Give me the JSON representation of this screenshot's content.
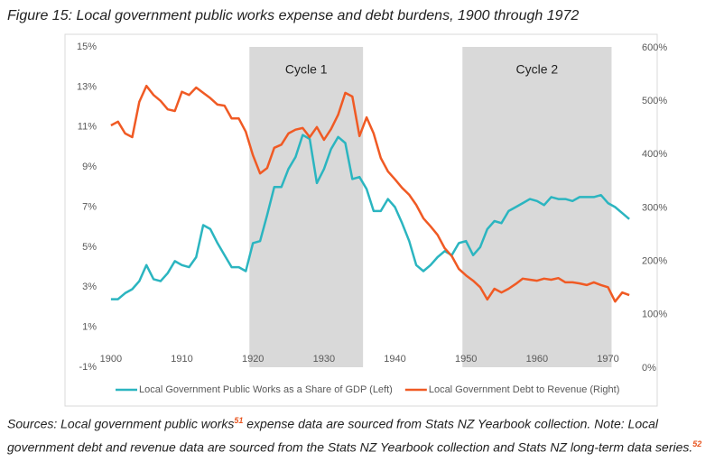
{
  "chart_data": {
    "type": "line",
    "title": "Figure 15: Local government public works expense and debt burdens, 1900 through 1972",
    "x": [
      1900,
      1901,
      1902,
      1903,
      1904,
      1905,
      1906,
      1907,
      1908,
      1909,
      1910,
      1911,
      1912,
      1913,
      1914,
      1915,
      1916,
      1917,
      1918,
      1919,
      1920,
      1921,
      1922,
      1923,
      1924,
      1925,
      1926,
      1927,
      1928,
      1929,
      1930,
      1931,
      1932,
      1933,
      1934,
      1935,
      1936,
      1937,
      1938,
      1939,
      1940,
      1941,
      1942,
      1943,
      1944,
      1945,
      1946,
      1947,
      1948,
      1949,
      1950,
      1951,
      1952,
      1953,
      1954,
      1955,
      1956,
      1957,
      1958,
      1959,
      1960,
      1961,
      1962,
      1963,
      1964,
      1965,
      1966,
      1967,
      1968,
      1969,
      1970,
      1971,
      1972,
      1973
    ],
    "xlim": [
      1899,
      1974
    ],
    "xticks": [
      1900,
      1910,
      1920,
      1930,
      1940,
      1950,
      1960,
      1970
    ],
    "ylim": [
      -1,
      15
    ],
    "yticks": [
      {
        "value": -1,
        "label": "-1%"
      },
      {
        "value": 1,
        "label": "1%"
      },
      {
        "value": 3,
        "label": "3%"
      },
      {
        "value": 5,
        "label": "5%"
      },
      {
        "value": 7,
        "label": "7%"
      },
      {
        "value": 9,
        "label": "9%"
      },
      {
        "value": 11,
        "label": "11%"
      },
      {
        "value": 13,
        "label": "13%"
      },
      {
        "value": 15,
        "label": "15%"
      }
    ],
    "y2lim": [
      0,
      600
    ],
    "y2ticks": [
      {
        "value": 0,
        "label": "0%"
      },
      {
        "value": 100,
        "label": "100%"
      },
      {
        "value": 200,
        "label": "200%"
      },
      {
        "value": 300,
        "label": "300%"
      },
      {
        "value": 400,
        "label": "400%"
      },
      {
        "value": 500,
        "label": "500%"
      },
      {
        "value": 600,
        "label": "600%"
      }
    ],
    "shaded_periods": [
      {
        "label": "Cycle 1",
        "start": 1919.5,
        "end": 1935.5
      },
      {
        "label": "Cycle 2",
        "start": 1949.5,
        "end": 1970.5
      }
    ],
    "shade_color": "#d9d9d9",
    "legend": "bottom",
    "series": [
      {
        "name": "Local Government Public Works as a Share of GDP (Left)",
        "color": "#2bb5c0",
        "axis": "y",
        "values": [
          2.4,
          2.4,
          2.7,
          2.9,
          3.3,
          4.1,
          3.4,
          3.3,
          3.7,
          4.3,
          4.1,
          4.0,
          4.5,
          6.1,
          5.9,
          5.2,
          4.6,
          4.0,
          4.0,
          3.8,
          5.2,
          5.3,
          6.6,
          8.0,
          8.0,
          8.9,
          9.5,
          10.6,
          10.4,
          8.2,
          8.9,
          9.9,
          10.5,
          10.2,
          8.4,
          8.5,
          7.9,
          6.8,
          6.8,
          7.4,
          7.0,
          6.2,
          5.3,
          4.1,
          3.8,
          4.1,
          4.5,
          4.8,
          4.6,
          5.2,
          5.3,
          4.6,
          5.0,
          5.9,
          6.3,
          6.2,
          6.8,
          7.0,
          7.2,
          7.4,
          7.3,
          7.1,
          7.5,
          7.4,
          7.4,
          7.3,
          7.5,
          7.5,
          7.5,
          7.6,
          7.2,
          7.0,
          6.7,
          6.4
        ]
      },
      {
        "name": "Local Government Debt to Revenue (Right)",
        "color": "#f05a24",
        "axis": "y2",
        "values": [
          453,
          460,
          438,
          431,
          497,
          527,
          510,
          499,
          483,
          480,
          516,
          510,
          524,
          514,
          504,
          492,
          490,
          466,
          466,
          441,
          397,
          363,
          373,
          411,
          417,
          438,
          445,
          448,
          431,
          450,
          426,
          446,
          473,
          514,
          507,
          433,
          468,
          438,
          392,
          367,
          352,
          336,
          323,
          304,
          279,
          264,
          248,
          223,
          208,
          184,
          172,
          162,
          150,
          127,
          147,
          140,
          147,
          156,
          166,
          164,
          162,
          166,
          164,
          167,
          159,
          159,
          157,
          154,
          159,
          154,
          150,
          123,
          140,
          135
        ]
      }
    ]
  },
  "source": {
    "text1": "Sources: Local government public works",
    "ref1": "51",
    "text2": " expense data are sourced from Stats NZ Yearbook collection. Note: Local government debt and revenue data are sourced from the Stats NZ Yearbook collection and Stats NZ long-term data series.",
    "ref2": "52"
  }
}
